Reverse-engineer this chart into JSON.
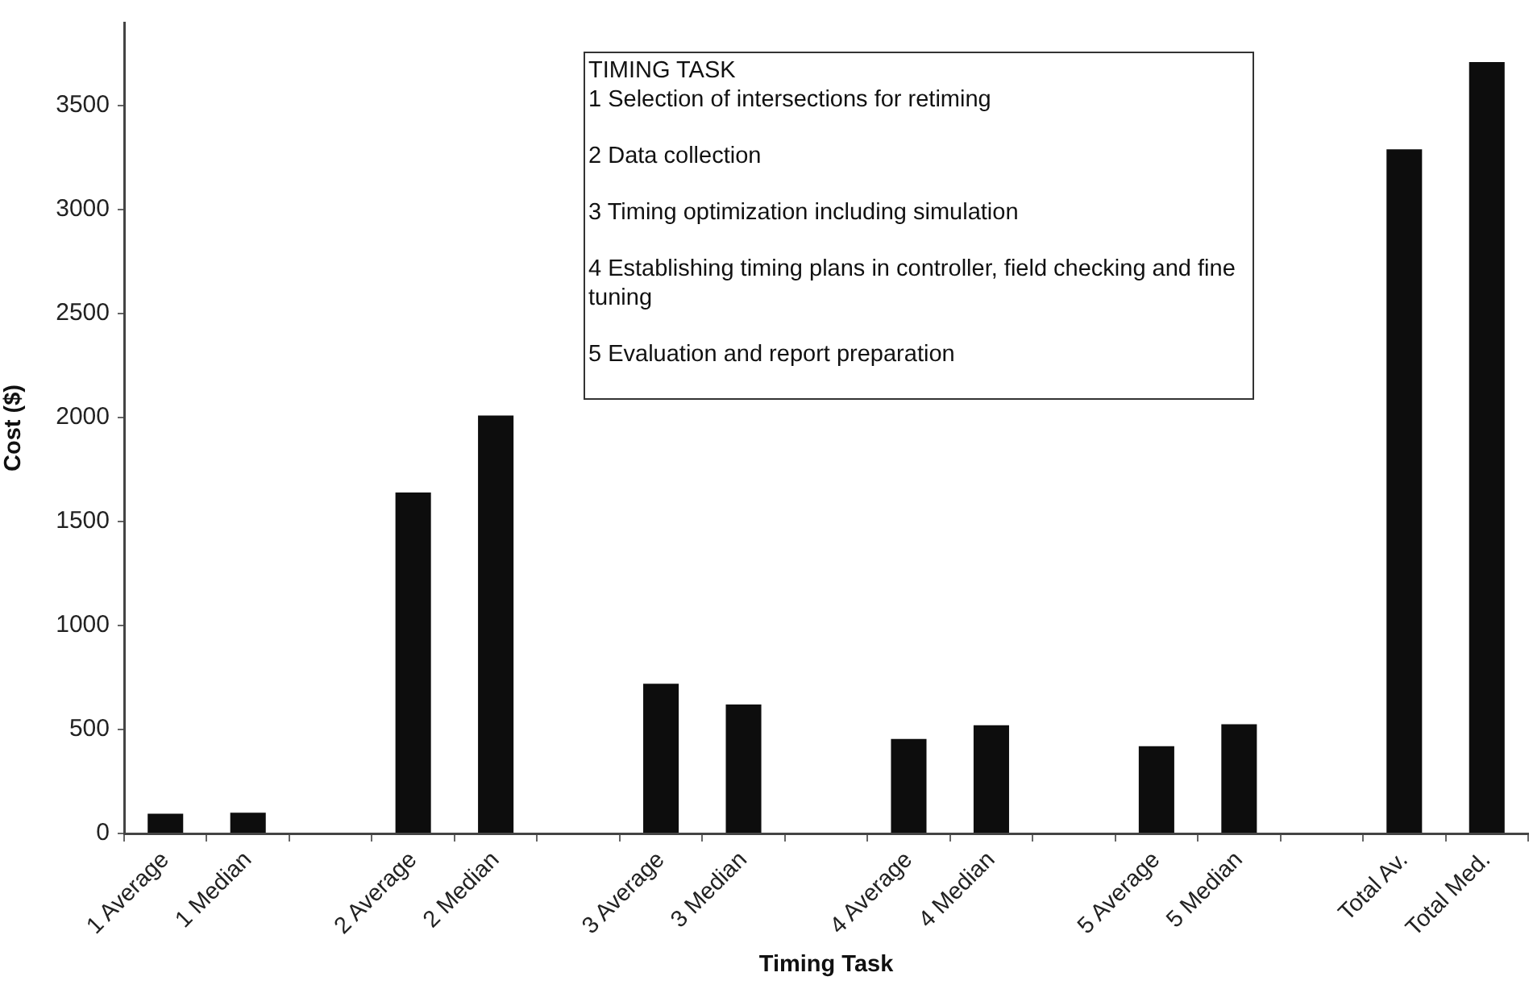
{
  "chart_data": {
    "type": "bar",
    "xlabel": "Timing Task",
    "ylabel": "Cost ($)",
    "categories": [
      "1 Average",
      "1 Median",
      null,
      "2 Average",
      "2 Median",
      null,
      "3 Average",
      "3 Median",
      null,
      "4 Average",
      "4 Median",
      null,
      "5 Average",
      "5 Median",
      null,
      "Total Av.",
      "Total Med."
    ],
    "values": [
      95,
      100,
      null,
      1640,
      2010,
      null,
      720,
      620,
      null,
      455,
      520,
      null,
      420,
      525,
      null,
      3290,
      3710
    ],
    "color": "#0d0d0d",
    "ylim": [
      0,
      3900
    ],
    "yticks": [
      0,
      500,
      1000,
      1500,
      2000,
      2500,
      3000,
      3500
    ],
    "annotations": [
      "TIMING TASK",
      "1 Selection of intersections for retiming",
      "2 Data collection",
      "3 Timing optimization including simulation",
      "4 Establishing timing plans in controller, field checking and fine tuning",
      "5 Evaluation and report preparation"
    ]
  }
}
